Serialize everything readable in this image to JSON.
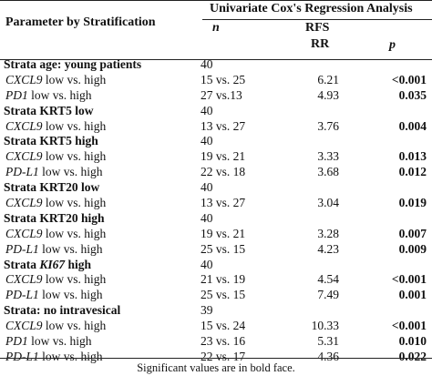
{
  "header": {
    "param_col": "Parameter by Stratification",
    "analysis": "Univariate Cox's Regression Analysis",
    "n": "n",
    "rfs": "RFS",
    "rr": "RR",
    "p": "p"
  },
  "rows": [
    {
      "type": "group",
      "pre": "Strata age: young patients",
      "n": "40"
    },
    {
      "type": "sub",
      "gene": "CXCL9",
      "post": " low vs. high",
      "n": "15 vs. 25",
      "rr": "6.21",
      "p": "<0.001"
    },
    {
      "type": "sub",
      "gene": "PD1",
      "post": " low vs. high",
      "n": "27 vs.13",
      "rr": "4.93",
      "p": "0.035"
    },
    {
      "type": "group",
      "pre": "Strata KRT5 low",
      "n": "40"
    },
    {
      "type": "sub",
      "gene": "CXCL9",
      "post": " low vs. high",
      "n": "13 vs. 27",
      "rr": "3.76",
      "p": "0.004"
    },
    {
      "type": "group",
      "pre": "Strata KRT5 high",
      "n": "40"
    },
    {
      "type": "sub",
      "gene": "CXCL9",
      "post": " low vs. high",
      "n": "19 vs. 21",
      "rr": "3.33",
      "p": "0.013"
    },
    {
      "type": "sub",
      "gene": "PD-L1",
      "post": " low vs. high",
      "n": "22 vs. 18",
      "rr": "3.68",
      "p": "0.012"
    },
    {
      "type": "group",
      "pre": "Strata KRT20 low",
      "n": "40"
    },
    {
      "type": "sub",
      "gene": "CXCL9",
      "post": " low vs. high",
      "n": "13 vs. 27",
      "rr": "3.04",
      "p": "0.019"
    },
    {
      "type": "group",
      "pre": "Strata KRT20 high",
      "n": "40"
    },
    {
      "type": "sub",
      "gene": "CXCL9",
      "post": " low vs. high",
      "n": "19 vs. 21",
      "rr": "3.28",
      "p": "0.007"
    },
    {
      "type": "sub",
      "gene": "PD-L1",
      "post": " low vs. high",
      "n": "25 vs. 15",
      "rr": "4.23",
      "p": "0.009"
    },
    {
      "type": "group",
      "pre": "Strata ",
      "gene": "KI67",
      "post": " high",
      "n": "40"
    },
    {
      "type": "sub",
      "gene": "CXCL9",
      "post": " low vs. high",
      "n": "21 vs. 19",
      "rr": "4.54",
      "p": "<0.001"
    },
    {
      "type": "sub",
      "gene": "PD-L1",
      "post": " low vs. high",
      "n": "25 vs. 15",
      "rr": "7.49",
      "p": "0.001"
    },
    {
      "type": "group",
      "pre": "Strata: no intravesical",
      "n": "39"
    },
    {
      "type": "sub",
      "gene": "CXCL9",
      "post": " low vs. high",
      "n": "15 vs. 24",
      "rr": "10.33",
      "p": "<0.001"
    },
    {
      "type": "sub",
      "gene": "PD1",
      "post": " low vs. high",
      "n": "23 vs. 16",
      "rr": "5.31",
      "p": "0.010"
    },
    {
      "type": "sub",
      "gene": "PD-L1",
      "post": " low vs. high",
      "n": "22 vs. 17",
      "rr": "4.36",
      "p": "0.022"
    }
  ],
  "footnote": "Significant values are in bold face."
}
